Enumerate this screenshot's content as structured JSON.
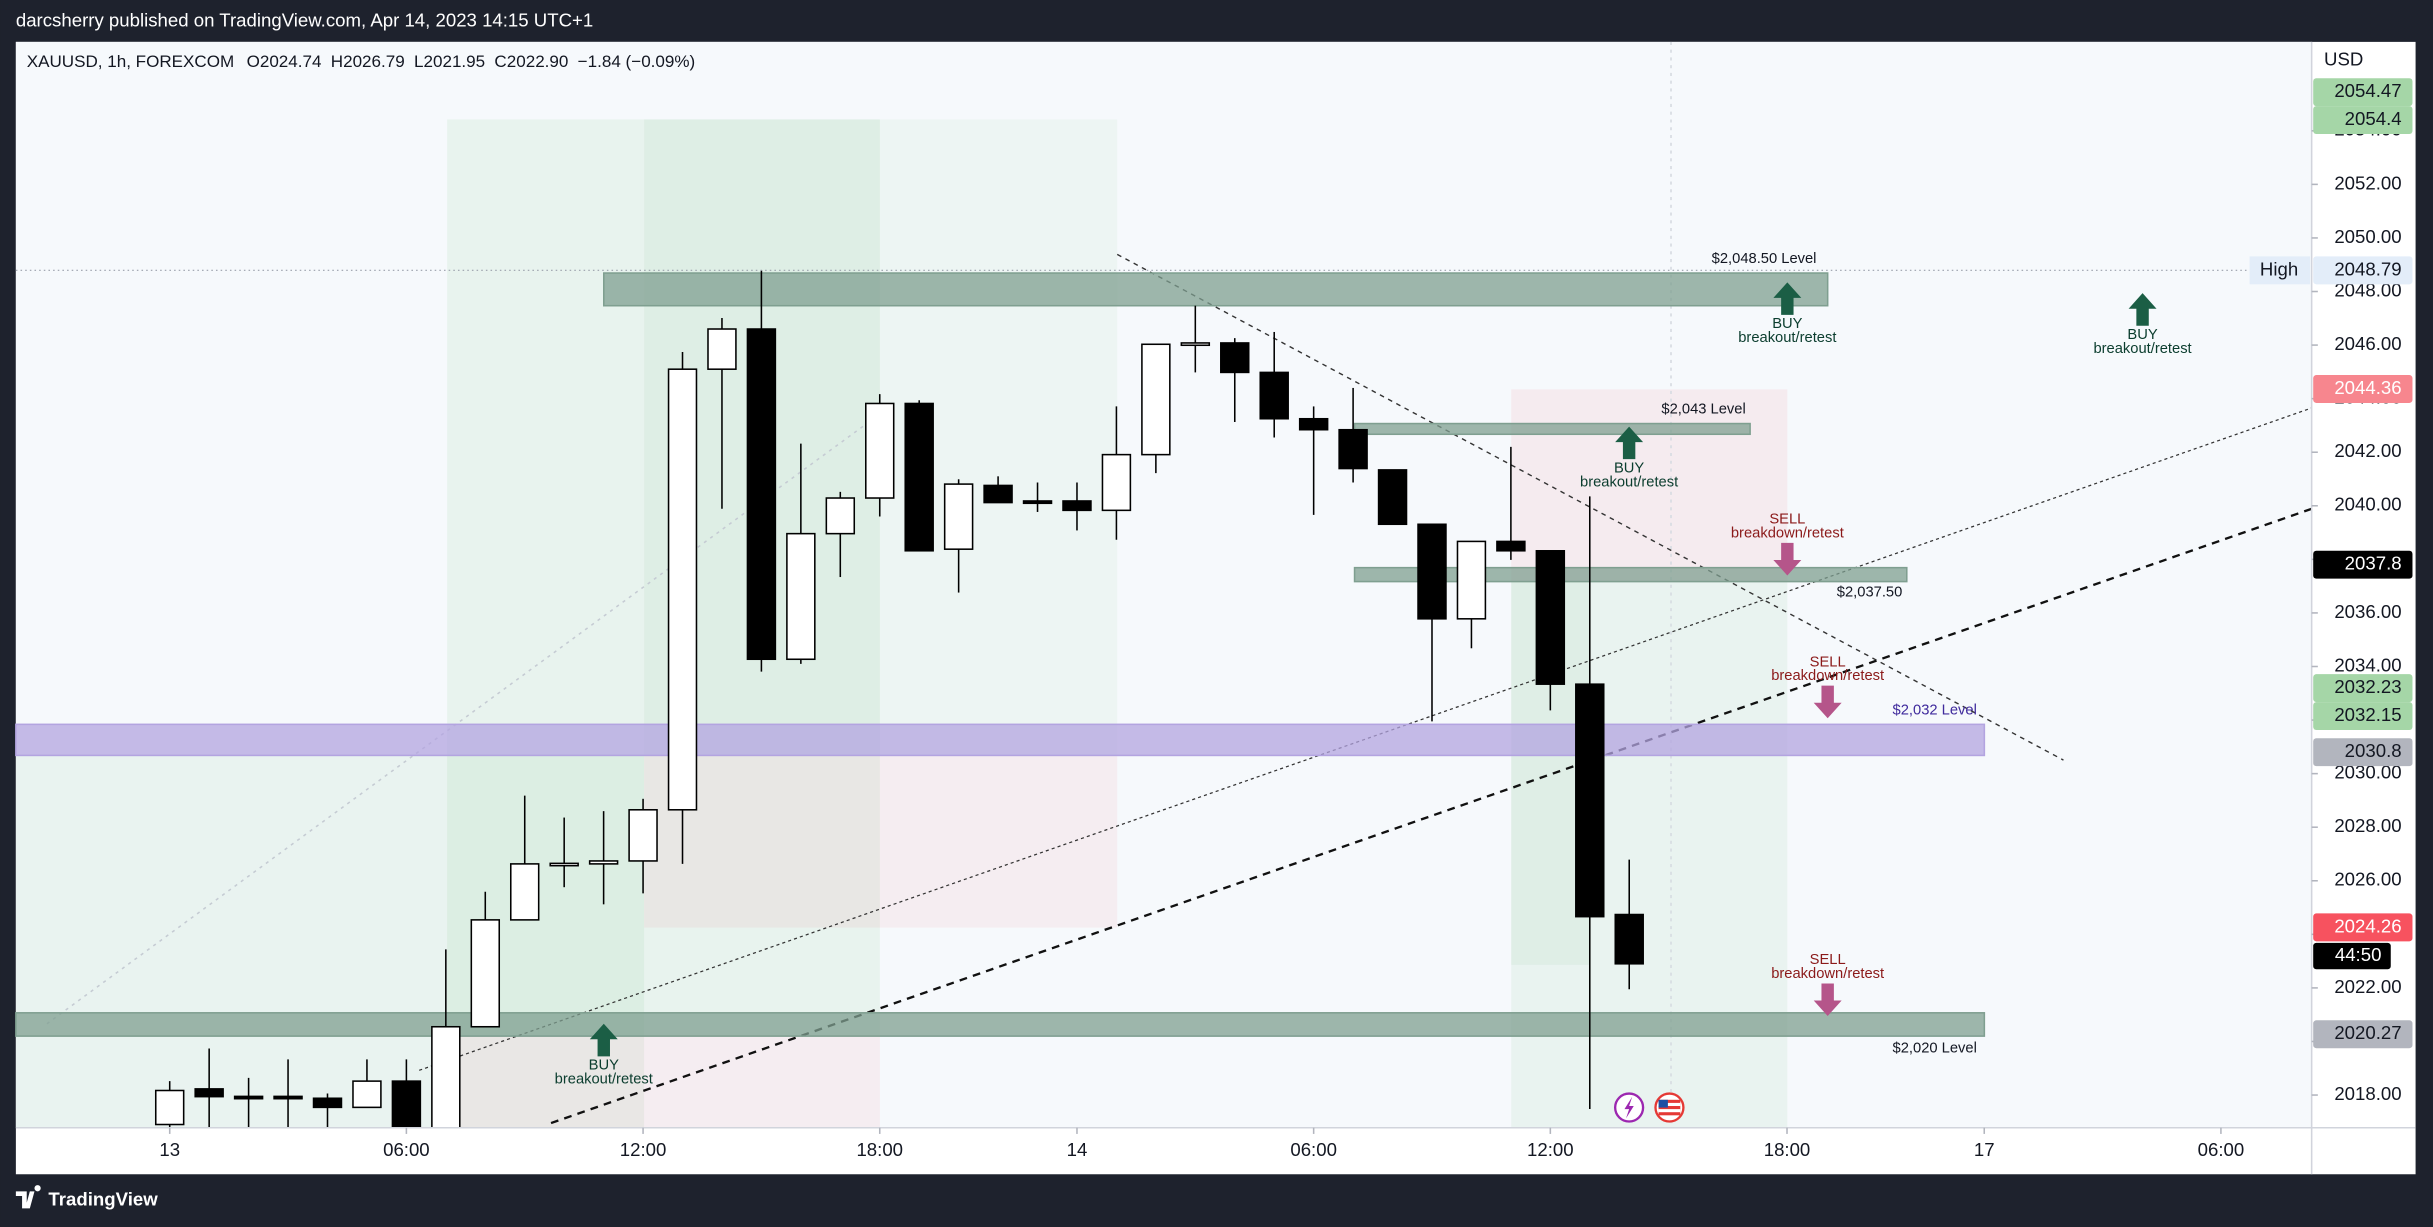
{
  "header": {
    "publisher": "darcsherry published on TradingView.com, Apr 14, 2023 14:15 UTC+1",
    "footer": "TradingView"
  },
  "chart_data": {
    "type": "candlestick",
    "title": "XAUUSD, 1h, FOREXCOM",
    "ohlc_texts": [
      "O2024.74",
      "H2026.79",
      "L2021.95",
      "C2022.90",
      "−1.84 (−0.09%)"
    ],
    "currency": "USD",
    "up_color": "#ffffff",
    "down_color": "#000000",
    "open": [
      2016.9,
      2018.23,
      2017.95,
      2017.95,
      2017.88,
      2017.54,
      2018.52,
      2016.6,
      2020.55,
      2024.54,
      2026.63,
      2026.63,
      2026.74,
      2028.65,
      2045.1,
      2046.6,
      2034.27,
      2038.96,
      2040.29,
      2043.82,
      2038.38,
      2040.76,
      2040.18,
      2040.18,
      2039.83,
      2041.91,
      2046.03,
      2046.08,
      2044.98,
      2043.25,
      2042.84,
      2041.34,
      2039.31,
      2035.78,
      2038.67,
      2038.32,
      2033.34,
      2024.74
    ],
    "high": [
      2018.52,
      2019.74,
      2018.64,
      2019.33,
      2018.06,
      2019.33,
      2019.33,
      2023.44,
      2025.59,
      2029.18,
      2028.36,
      2028.6,
      2029.06,
      2045.74,
      2047.01,
      2048.79,
      2042.32,
      2040.52,
      2044.17,
      2043.94,
      2040.99,
      2041.1,
      2040.87,
      2040.87,
      2043.71,
      2046.03,
      2047.47,
      2046.26,
      2046.49,
      2043.71,
      2044.4,
      2041.34,
      2039.31,
      2038.67,
      2042.2,
      2038.32,
      2040.35,
      2026.79
    ],
    "low": [
      2016.5,
      2016.6,
      2016.7,
      2016.7,
      2016.6,
      2017.54,
      2016.4,
      2016.4,
      2020.55,
      2024.54,
      2025.76,
      2025.12,
      2025.53,
      2026.63,
      2039.89,
      2033.81,
      2034.1,
      2037.34,
      2039.6,
      2038.32,
      2036.76,
      2040.12,
      2039.77,
      2039.08,
      2038.73,
      2041.22,
      2044.98,
      2043.13,
      2042.55,
      2039.66,
      2040.87,
      2039.31,
      2031.95,
      2034.68,
      2037.98,
      2032.36,
      2017.48,
      2021.95
    ],
    "close": [
      2018.17,
      2017.94,
      2017.94,
      2017.92,
      2017.54,
      2018.52,
      2016.6,
      2020.55,
      2024.54,
      2026.63,
      2026.65,
      2026.74,
      2028.65,
      2045.1,
      2046.6,
      2034.27,
      2038.96,
      2040.29,
      2043.82,
      2038.32,
      2040.81,
      2040.12,
      2040.15,
      2039.83,
      2041.91,
      2046.03,
      2046.08,
      2044.98,
      2043.25,
      2042.84,
      2041.39,
      2039.31,
      2035.78,
      2038.67,
      2038.32,
      2033.34,
      2024.66,
      2022.9
    ],
    "xlim": [
      -3.9,
      54.3
    ],
    "xticks": [
      {
        "value": 0,
        "label": "13"
      },
      {
        "value": 6,
        "label": "06:00"
      },
      {
        "value": 12,
        "label": "12:00"
      },
      {
        "value": 18,
        "label": "18:00"
      },
      {
        "value": 23,
        "label": "14"
      },
      {
        "value": 29,
        "label": "06:00"
      },
      {
        "value": 35,
        "label": "12:00"
      },
      {
        "value": 41,
        "label": "18:00"
      },
      {
        "value": 46,
        "label": "17"
      },
      {
        "value": 52,
        "label": "06:00"
      }
    ],
    "ylim": [
      2016.78,
      2057.32
    ],
    "yticks": [
      {
        "value": 2018,
        "label": "2018.00"
      },
      {
        "value": 2020,
        "label": "2020.00"
      },
      {
        "value": 2022,
        "label": "2022.00"
      },
      {
        "value": 2024,
        "label": "2024.00"
      },
      {
        "value": 2026,
        "label": "2026.00"
      },
      {
        "value": 2028,
        "label": "2028.00"
      },
      {
        "value": 2030,
        "label": "2030.00"
      },
      {
        "value": 2032,
        "label": "2032.00"
      },
      {
        "value": 2034,
        "label": "2034.00"
      },
      {
        "value": 2036,
        "label": "2036.00"
      },
      {
        "value": 2038,
        "label": "2038.00"
      },
      {
        "value": 2040,
        "label": "2040.00"
      },
      {
        "value": 2042,
        "label": "2042.00"
      },
      {
        "value": 2044,
        "label": "2044.00"
      },
      {
        "value": 2046,
        "label": "2046.00"
      },
      {
        "value": 2048,
        "label": "2048.00"
      },
      {
        "value": 2050,
        "label": "2050.00"
      },
      {
        "value": 2052,
        "label": "2052.00"
      },
      {
        "value": 2054,
        "label": "2054.00"
      }
    ],
    "levels": [
      {
        "name": "$2,048.50 Level",
        "top": 2048.69,
        "bottom": 2047.47,
        "color": "#7f9f90"
      },
      {
        "name": "$2,043 Level",
        "top": 2043.07,
        "bottom": 2042.67,
        "color": "#7f9f90"
      },
      {
        "name": "$2,037.50",
        "top": 2037.69,
        "bottom": 2037.17,
        "color": "#7f9f90"
      },
      {
        "name": "$2,032 Level",
        "top": 2031.84,
        "bottom": 2030.68,
        "color": "#b3a4e0"
      },
      {
        "name": "$2,020 Level",
        "top": 2021.07,
        "bottom": 2020.2,
        "color": "#7f9f90"
      }
    ],
    "price_labels": [
      {
        "value": 2054.4,
        "color": "#a5d6a7"
      },
      {
        "value": 2054.47,
        "color": "#a5d6a7"
      },
      {
        "value": 2048.79,
        "color": "#e3edf9",
        "tag": "High"
      },
      {
        "value": 2044.36,
        "color": "#f7868e"
      },
      {
        "value": 2037.8,
        "color": "#000000"
      },
      {
        "value": 2032.15,
        "color": "#a5d6a7"
      },
      {
        "value": 2032.23,
        "color": "#a5d6a7"
      },
      {
        "value": 2030.8,
        "color": "#b2b5be"
      },
      {
        "value": 2024.26,
        "color": "#f7525f",
        "countdown": "44:50"
      },
      {
        "value": 2020.27,
        "color": "#b2b5be"
      }
    ],
    "annotations": [
      {
        "side": "BUY",
        "text": "breakout/retest"
      },
      {
        "side": "BUY",
        "text": "breakout/retest"
      },
      {
        "side": "BUY",
        "text": "breakout/retest"
      },
      {
        "side": "BUY",
        "text": "breakout/retest"
      },
      {
        "side": "SELL",
        "text": "breakdown/retest"
      },
      {
        "side": "SELL",
        "text": "breakdown/retest"
      },
      {
        "side": "SELL",
        "text": "breakdown/retest"
      }
    ]
  }
}
